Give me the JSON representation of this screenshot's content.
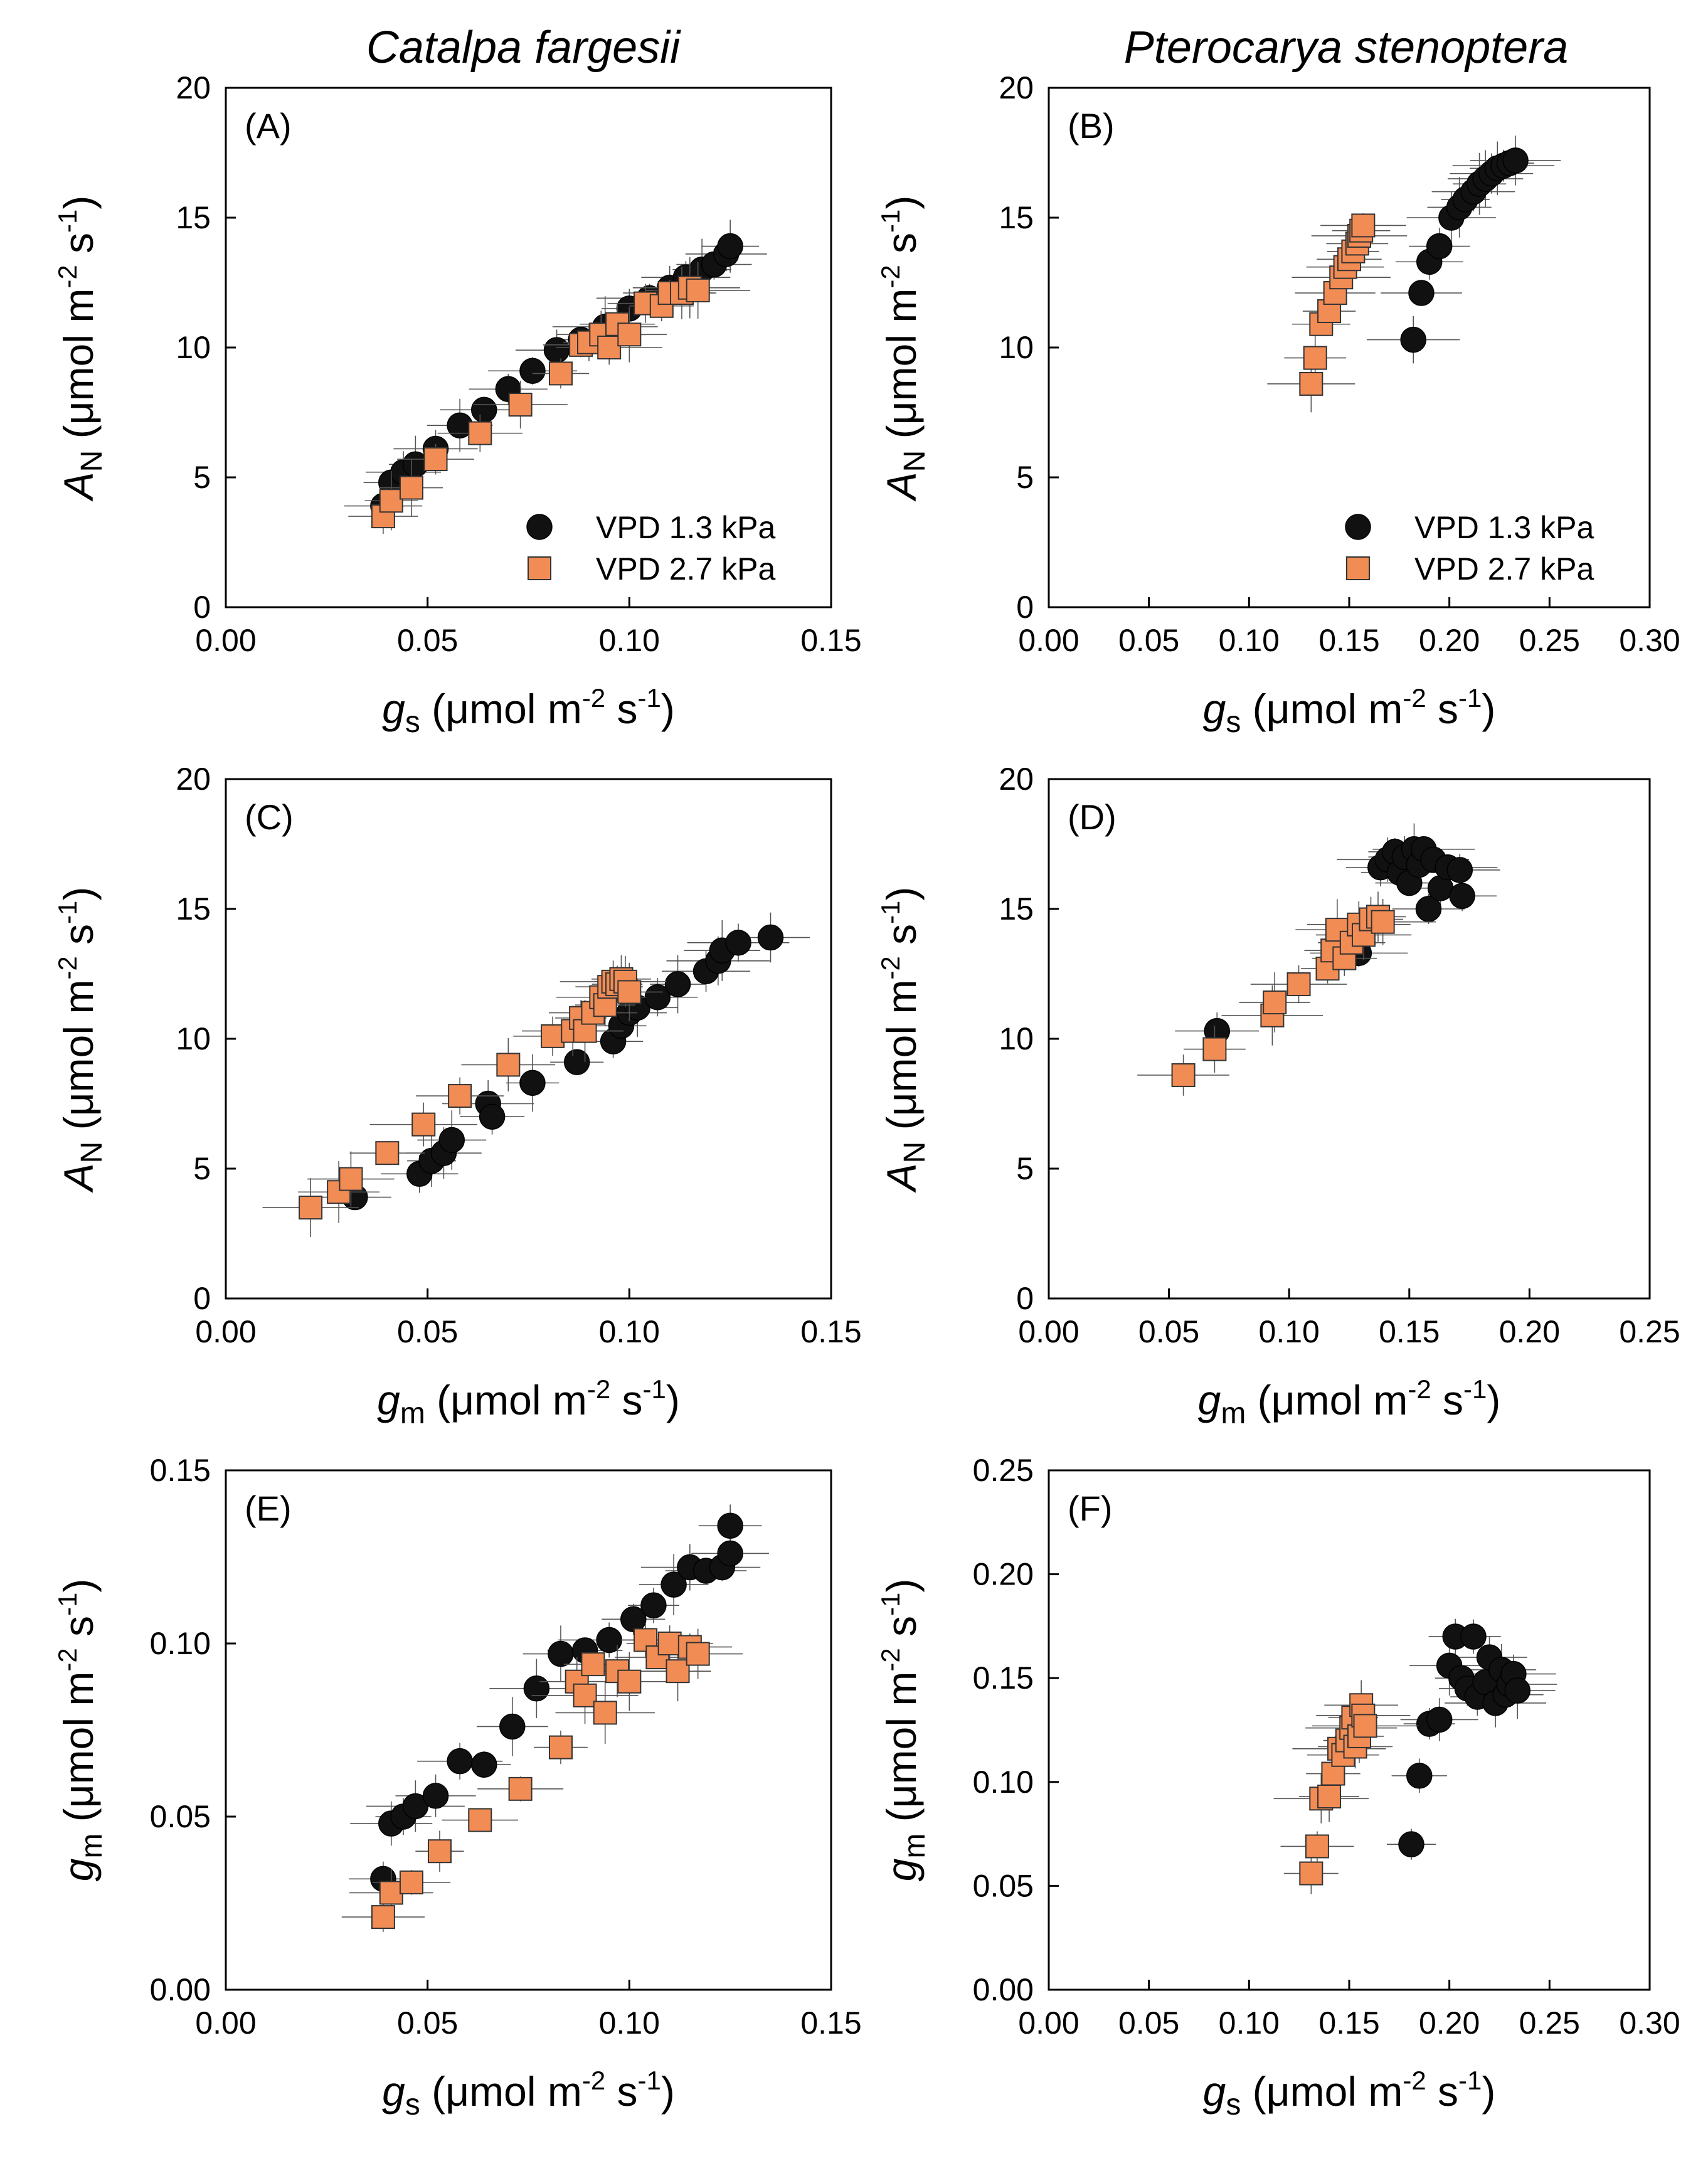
{
  "figure": {
    "column_titles": [
      "Catalpa fargesii",
      "Pterocarya stenoptera"
    ]
  },
  "chart_data": [
    {
      "id": "A",
      "type": "scatter",
      "panel_label": "(A)",
      "xlabel": {
        "symbol": "g",
        "sub": "s",
        "unit_prefix": "(μmol m",
        "exp1": "-2",
        "mid": " s",
        "exp2": "-1",
        "close": ")"
      },
      "ylabel": {
        "symbol": "A",
        "sub": "N",
        "unit_prefix": "(μmol m",
        "exp1": "-2",
        "mid": " s",
        "exp2": "-1",
        "close": ")"
      },
      "xlim": [
        0,
        0.15
      ],
      "ylim": [
        0,
        20
      ],
      "xticks": [
        "0.00",
        "0.05",
        "0.10",
        "0.15"
      ],
      "yticks": [
        "0",
        "5",
        "10",
        "15",
        "20"
      ],
      "legend": {
        "position": "bottom-right",
        "entries": [
          "VPD 1.3 kPa",
          "VPD 2.7 kPa"
        ]
      },
      "series": [
        {
          "name": "VPD 1.3 kPa",
          "marker": "circle",
          "color": "#111111",
          "x": [
            0.039,
            0.041,
            0.044,
            0.047,
            0.052,
            0.058,
            0.064,
            0.07,
            0.076,
            0.082,
            0.088,
            0.094,
            0.1,
            0.105,
            0.11,
            0.114,
            0.118,
            0.121,
            0.124,
            0.125
          ],
          "y": [
            3.9,
            4.8,
            5.2,
            5.5,
            6.1,
            7.0,
            7.6,
            8.4,
            9.1,
            9.9,
            10.3,
            10.8,
            11.5,
            11.9,
            12.3,
            12.7,
            13.0,
            13.2,
            13.6,
            13.9
          ]
        },
        {
          "name": "VPD 2.7 kPa",
          "marker": "square",
          "color": "#F28C55",
          "x": [
            0.039,
            0.041,
            0.046,
            0.052,
            0.063,
            0.073,
            0.083,
            0.088,
            0.09,
            0.093,
            0.095,
            0.097,
            0.1,
            0.104,
            0.108,
            0.11,
            0.113,
            0.115,
            0.117
          ],
          "y": [
            3.5,
            4.1,
            4.6,
            5.7,
            6.7,
            7.8,
            9.0,
            10.1,
            10.2,
            10.5,
            10.0,
            10.9,
            10.5,
            11.7,
            11.6,
            12.1,
            12.1,
            12.3,
            12.2
          ]
        }
      ]
    },
    {
      "id": "B",
      "type": "scatter",
      "panel_label": "(B)",
      "xlabel": {
        "symbol": "g",
        "sub": "s",
        "unit_prefix": "(μmol m",
        "exp1": "-2",
        "mid": " s",
        "exp2": "-1",
        "close": ")"
      },
      "ylabel": {
        "symbol": "A",
        "sub": "N",
        "unit_prefix": "(μmol m",
        "exp1": "-2",
        "mid": " s",
        "exp2": "-1",
        "close": ")"
      },
      "xlim": [
        0,
        0.3
      ],
      "ylim": [
        0,
        20
      ],
      "xticks": [
        "0.00",
        "0.05",
        "0.10",
        "0.15",
        "0.20",
        "0.25",
        "0.30"
      ],
      "yticks": [
        "0",
        "5",
        "10",
        "15",
        "20"
      ],
      "legend": {
        "position": "bottom-right",
        "entries": [
          "VPD 1.3 kPa",
          "VPD 2.7 kPa"
        ]
      },
      "series": [
        {
          "name": "VPD 1.3 kPa",
          "marker": "circle",
          "color": "#111111",
          "x": [
            0.182,
            0.186,
            0.19,
            0.195,
            0.201,
            0.205,
            0.208,
            0.212,
            0.215,
            0.218,
            0.221,
            0.224,
            0.227,
            0.23,
            0.233
          ],
          "y": [
            10.3,
            12.1,
            13.3,
            13.9,
            15.0,
            15.4,
            15.7,
            16.0,
            16.3,
            16.5,
            16.7,
            16.9,
            17.0,
            17.1,
            17.2
          ]
        },
        {
          "name": "VPD 2.7 kPa",
          "marker": "square",
          "color": "#F28C55",
          "x": [
            0.131,
            0.133,
            0.136,
            0.14,
            0.143,
            0.146,
            0.148,
            0.15,
            0.152,
            0.154,
            0.155,
            0.156,
            0.157
          ],
          "y": [
            8.6,
            9.6,
            10.9,
            11.4,
            12.1,
            12.7,
            13.1,
            13.4,
            13.7,
            14.0,
            14.3,
            14.5,
            14.7
          ]
        }
      ]
    },
    {
      "id": "C",
      "type": "scatter",
      "panel_label": "(C)",
      "xlabel": {
        "symbol": "g",
        "sub": "m",
        "unit_prefix": "(μmol m",
        "exp1": "-2",
        "mid": " s",
        "exp2": "-1",
        "close": ")"
      },
      "ylabel": {
        "symbol": "A",
        "sub": "N",
        "unit_prefix": "(μmol m",
        "exp1": "-2",
        "mid": " s",
        "exp2": "-1",
        "close": ")"
      },
      "xlim": [
        0,
        0.15
      ],
      "ylim": [
        0,
        20
      ],
      "xticks": [
        "0.00",
        "0.05",
        "0.10",
        "0.15"
      ],
      "yticks": [
        "0",
        "5",
        "10",
        "15",
        "20"
      ],
      "series": [
        {
          "name": "VPD 1.3 kPa",
          "marker": "circle",
          "color": "#111111",
          "x": [
            0.032,
            0.048,
            0.051,
            0.054,
            0.056,
            0.065,
            0.066,
            0.076,
            0.087,
            0.096,
            0.098,
            0.1,
            0.102,
            0.107,
            0.112,
            0.119,
            0.122,
            0.123,
            0.127,
            0.135
          ],
          "y": [
            3.9,
            4.8,
            5.3,
            5.6,
            6.1,
            7.5,
            7.0,
            8.3,
            9.1,
            9.9,
            10.5,
            11.0,
            11.2,
            11.6,
            12.1,
            12.6,
            13.0,
            13.4,
            13.7,
            13.9
          ]
        },
        {
          "name": "VPD 2.7 kPa",
          "marker": "square",
          "color": "#F28C55",
          "x": [
            0.021,
            0.028,
            0.031,
            0.04,
            0.049,
            0.058,
            0.07,
            0.081,
            0.086,
            0.088,
            0.089,
            0.091,
            0.093,
            0.094,
            0.095,
            0.096,
            0.097,
            0.098,
            0.099,
            0.1
          ],
          "y": [
            3.5,
            4.1,
            4.6,
            5.6,
            6.7,
            7.8,
            9.0,
            10.1,
            10.3,
            10.8,
            10.3,
            11.0,
            11.6,
            11.3,
            12.0,
            12.2,
            12.1,
            12.3,
            12.2,
            11.8
          ]
        }
      ]
    },
    {
      "id": "D",
      "type": "scatter",
      "panel_label": "(D)",
      "xlabel": {
        "symbol": "g",
        "sub": "m",
        "unit_prefix": "(μmol m",
        "exp1": "-2",
        "mid": " s",
        "exp2": "-1",
        "close": ")"
      },
      "ylabel": {
        "symbol": "A",
        "sub": "N",
        "unit_prefix": "(μmol m",
        "exp1": "-2",
        "mid": " s",
        "exp2": "-1",
        "close": ")"
      },
      "xlim": [
        0,
        0.25
      ],
      "ylim": [
        0,
        20
      ],
      "xticks": [
        "0.00",
        "0.05",
        "0.10",
        "0.15",
        "0.20",
        "0.25"
      ],
      "yticks": [
        "0",
        "5",
        "10",
        "15",
        "20"
      ],
      "series": [
        {
          "name": "VPD 1.3 kPa",
          "marker": "circle",
          "color": "#111111",
          "x": [
            0.07,
            0.129,
            0.138,
            0.141,
            0.144,
            0.146,
            0.148,
            0.15,
            0.152,
            0.154,
            0.156,
            0.158,
            0.16,
            0.163,
            0.166,
            0.171,
            0.172
          ],
          "y": [
            10.3,
            13.3,
            16.6,
            16.9,
            17.2,
            16.4,
            17.0,
            16.0,
            17.3,
            16.7,
            17.3,
            15.0,
            16.9,
            15.8,
            16.6,
            16.5,
            15.5
          ]
        },
        {
          "name": "VPD 2.7 kPa",
          "marker": "square",
          "color": "#F28C55",
          "x": [
            0.056,
            0.069,
            0.093,
            0.094,
            0.104,
            0.116,
            0.118,
            0.12,
            0.123,
            0.126,
            0.129,
            0.131,
            0.134,
            0.137,
            0.139
          ],
          "y": [
            8.6,
            9.6,
            10.9,
            11.4,
            12.1,
            12.7,
            13.4,
            14.2,
            13.1,
            13.7,
            14.4,
            14.0,
            14.6,
            14.7,
            14.5
          ]
        }
      ]
    },
    {
      "id": "E",
      "type": "scatter",
      "panel_label": "(E)",
      "xlabel": {
        "symbol": "g",
        "sub": "s",
        "unit_prefix": "(μmol m",
        "exp1": "-2",
        "mid": " s",
        "exp2": "-1",
        "close": ")"
      },
      "ylabel": {
        "symbol": "g",
        "sub": "m",
        "unit_prefix": "(μmol m",
        "exp1": "-2",
        "mid": " s",
        "exp2": "-1",
        "close": ")"
      },
      "xlim": [
        0,
        0.15
      ],
      "ylim": [
        0,
        0.15
      ],
      "xticks": [
        "0.00",
        "0.05",
        "0.10",
        "0.15"
      ],
      "yticks": [
        "0.00",
        "0.05",
        "0.10",
        "0.15"
      ],
      "series": [
        {
          "name": "VPD 1.3 kPa",
          "marker": "circle",
          "color": "#111111",
          "x": [
            0.039,
            0.041,
            0.044,
            0.047,
            0.052,
            0.058,
            0.064,
            0.071,
            0.077,
            0.083,
            0.089,
            0.095,
            0.101,
            0.106,
            0.111,
            0.115,
            0.119,
            0.123,
            0.125,
            0.125
          ],
          "y": [
            0.032,
            0.048,
            0.05,
            0.053,
            0.056,
            0.066,
            0.065,
            0.076,
            0.087,
            0.097,
            0.098,
            0.101,
            0.107,
            0.111,
            0.117,
            0.122,
            0.121,
            0.122,
            0.126,
            0.134
          ]
        },
        {
          "name": "VPD 2.7 kPa",
          "marker": "square",
          "color": "#F28C55",
          "x": [
            0.039,
            0.041,
            0.046,
            0.053,
            0.063,
            0.073,
            0.083,
            0.087,
            0.089,
            0.091,
            0.094,
            0.097,
            0.1,
            0.104,
            0.107,
            0.11,
            0.112,
            0.115,
            0.117
          ],
          "y": [
            0.021,
            0.028,
            0.031,
            0.04,
            0.049,
            0.058,
            0.07,
            0.089,
            0.085,
            0.094,
            0.08,
            0.092,
            0.089,
            0.101,
            0.096,
            0.1,
            0.092,
            0.099,
            0.097
          ]
        }
      ]
    },
    {
      "id": "F",
      "type": "scatter",
      "panel_label": "(F)",
      "xlabel": {
        "symbol": "g",
        "sub": "s",
        "unit_prefix": "(μmol m",
        "exp1": "-2",
        "mid": " s",
        "exp2": "-1",
        "close": ")"
      },
      "ylabel": {
        "symbol": "g",
        "sub": "m",
        "unit_prefix": "(μmol m",
        "exp1": "-2",
        "mid": " s",
        "exp2": "-1",
        "close": ")"
      },
      "xlim": [
        0,
        0.3
      ],
      "ylim": [
        0,
        0.25
      ],
      "xticks": [
        "0.00",
        "0.05",
        "0.10",
        "0.15",
        "0.20",
        "0.25",
        "0.30"
      ],
      "yticks": [
        "0.00",
        "0.05",
        "0.10",
        "0.15",
        "0.20",
        "0.25"
      ],
      "series": [
        {
          "name": "VPD 1.3 kPa",
          "marker": "circle",
          "color": "#111111",
          "x": [
            0.181,
            0.185,
            0.19,
            0.195,
            0.2,
            0.203,
            0.206,
            0.209,
            0.212,
            0.214,
            0.218,
            0.22,
            0.223,
            0.226,
            0.228,
            0.23,
            0.232,
            0.234
          ],
          "y": [
            0.07,
            0.103,
            0.128,
            0.13,
            0.156,
            0.17,
            0.15,
            0.145,
            0.17,
            0.141,
            0.148,
            0.16,
            0.138,
            0.154,
            0.142,
            0.147,
            0.152,
            0.144
          ]
        },
        {
          "name": "VPD 2.7 kPa",
          "marker": "square",
          "color": "#F28C55",
          "x": [
            0.131,
            0.134,
            0.136,
            0.14,
            0.142,
            0.145,
            0.147,
            0.149,
            0.151,
            0.152,
            0.153,
            0.155,
            0.156,
            0.157,
            0.158
          ],
          "y": [
            0.056,
            0.069,
            0.092,
            0.093,
            0.104,
            0.116,
            0.113,
            0.12,
            0.126,
            0.131,
            0.117,
            0.122,
            0.137,
            0.132,
            0.127
          ]
        }
      ]
    }
  ]
}
